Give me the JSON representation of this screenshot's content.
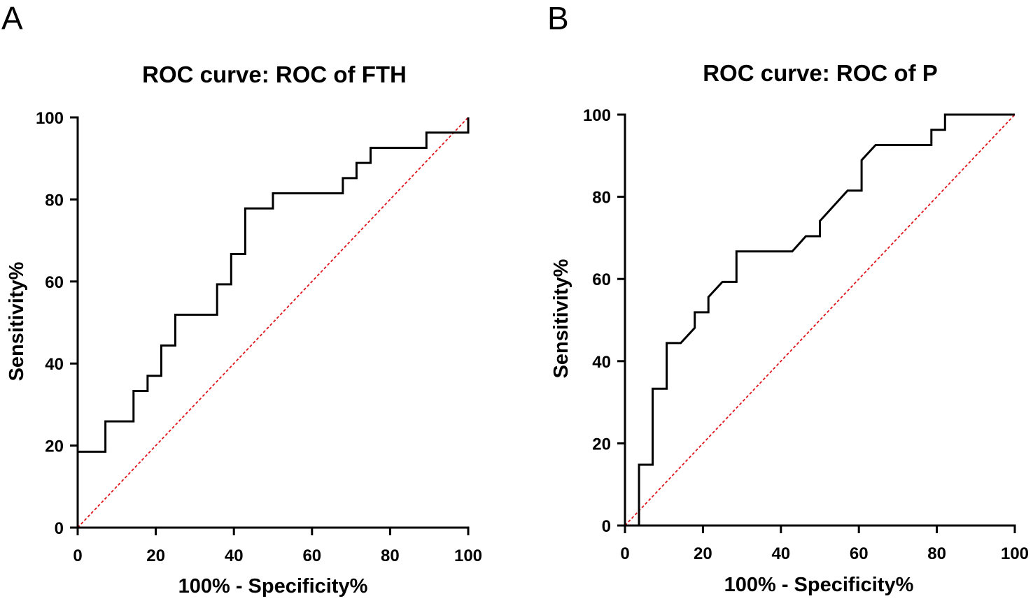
{
  "figure": {
    "panels": [
      "A",
      "B"
    ]
  },
  "chart_data": [
    {
      "panel": "A",
      "type": "line",
      "title": "ROC curve: ROC of FTH",
      "xlabel": "100% - Specificity%",
      "ylabel": "Sensitivity%",
      "xlim": [
        0,
        100
      ],
      "ylim": [
        0,
        100
      ],
      "xticks": [
        0,
        20,
        40,
        60,
        80,
        100
      ],
      "yticks": [
        0,
        20,
        40,
        60,
        80,
        100
      ],
      "grid": false,
      "series": [
        {
          "name": "ROC of FTH",
          "style": "step",
          "color": "#000000",
          "x": [
            0,
            0,
            7.1,
            7.1,
            14.3,
            14.3,
            17.9,
            17.9,
            21.4,
            21.4,
            25,
            25,
            35.7,
            35.7,
            39.3,
            39.3,
            42.9,
            42.9,
            50,
            50,
            67.9,
            67.9,
            71.4,
            71.4,
            75,
            75,
            89.3,
            89.3,
            100,
            100
          ],
          "y": [
            0,
            18.5,
            18.5,
            25.9,
            25.9,
            33.3,
            33.3,
            37,
            37,
            44.4,
            44.4,
            51.9,
            51.9,
            59.3,
            59.3,
            66.7,
            66.7,
            77.8,
            77.8,
            81.5,
            81.5,
            85.2,
            85.2,
            88.9,
            88.9,
            92.6,
            92.6,
            96.3,
            96.3,
            100
          ]
        },
        {
          "name": "Reference line",
          "style": "dashed",
          "color": "#e0141b",
          "x": [
            0,
            100
          ],
          "y": [
            0,
            100
          ]
        }
      ]
    },
    {
      "panel": "B",
      "type": "line",
      "title": "ROC curve: ROC of P",
      "xlabel": "100% - Specificity%",
      "ylabel": "Sensitivity%",
      "xlim": [
        0,
        100
      ],
      "ylim": [
        0,
        100
      ],
      "xticks": [
        0,
        20,
        40,
        60,
        80,
        100
      ],
      "yticks": [
        0,
        20,
        40,
        60,
        80,
        100
      ],
      "grid": false,
      "series": [
        {
          "name": "ROC of P",
          "style": "step",
          "color": "#000000",
          "x": [
            3.6,
            3.6,
            7.1,
            7.1,
            10.7,
            10.7,
            14.3,
            17.9,
            17.9,
            21.4,
            21.4,
            25,
            28.6,
            28.6,
            42.9,
            46.4,
            50,
            50,
            57.1,
            60.7,
            60.7,
            64.3,
            78.6,
            78.6,
            82.1,
            82.1,
            100
          ],
          "y": [
            0,
            14.8,
            14.8,
            33.3,
            33.3,
            44.4,
            44.4,
            48.1,
            51.9,
            51.9,
            55.6,
            59.3,
            59.3,
            66.7,
            66.7,
            70.4,
            70.4,
            74.1,
            81.5,
            81.5,
            88.9,
            92.6,
            92.6,
            96.3,
            96.3,
            100,
            100
          ]
        },
        {
          "name": "Reference line",
          "style": "dashed",
          "color": "#e0141b",
          "x": [
            0,
            100
          ],
          "y": [
            0,
            100
          ]
        }
      ]
    }
  ]
}
